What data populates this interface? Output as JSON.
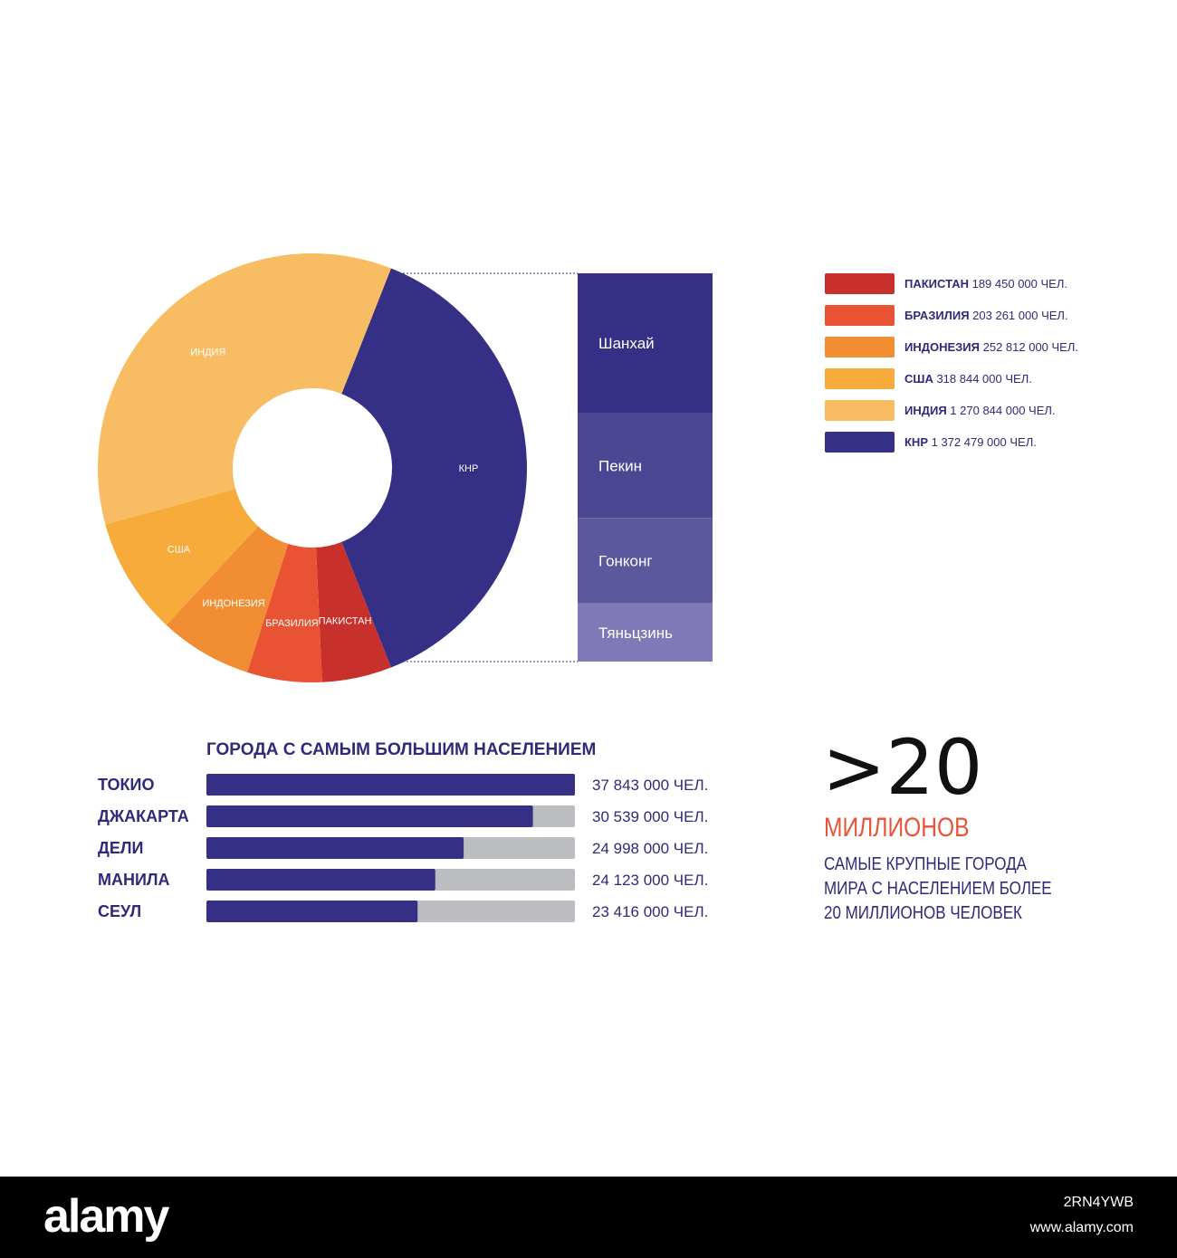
{
  "chart_data": [
    {
      "type": "pie",
      "donut": true,
      "slices": [
        {
          "key": "china",
          "label": "КНР",
          "value": 1372479000,
          "color": "#362f86"
        },
        {
          "key": "pakistan",
          "label": "ПАКИСТАН",
          "value": 189450000,
          "color": "#c8302b"
        },
        {
          "key": "brazil",
          "label": "БРАЗИЛИЯ",
          "value": 203261000,
          "color": "#ea5234"
        },
        {
          "key": "indonesia",
          "label": "ИНДОНЕЗИЯ",
          "value": 252812000,
          "color": "#f18d33"
        },
        {
          "key": "usa",
          "label": "США",
          "value": 318844000,
          "color": "#f6ab3a"
        },
        {
          "key": "india",
          "label": "ИНДИЯ",
          "value": 1270844000,
          "color": "#f8bd62"
        }
      ],
      "legend": {
        "placement": "right",
        "unit": "ЧЕЛ.",
        "entries": [
          {
            "name": "ПАКИСТАН",
            "value_text": "189 450 000 ЧЕЛ.",
            "color": "#c8302b"
          },
          {
            "name": "БРАЗИЛИЯ",
            "value_text": "203 261 000 ЧЕЛ.",
            "color": "#ea5234"
          },
          {
            "name": "ИНДОНЕЗИЯ",
            "value_text": "252 812 000 ЧЕЛ.",
            "color": "#f18d33"
          },
          {
            "name": "США",
            "value_text": "318 844 000 ЧЕЛ.",
            "color": "#f6ab3a"
          },
          {
            "name": "ИНДИЯ",
            "value_text": "1 270 844 000 ЧЕЛ.",
            "color": "#f8bd62"
          },
          {
            "name": "КНР",
            "value_text": "1 372 479 000 ЧЕЛ.",
            "color": "#362f86"
          }
        ]
      },
      "breakdown": {
        "of": "КНР",
        "segments": [
          {
            "label": "Шанхай",
            "share": 0.36,
            "color": "#362f86"
          },
          {
            "label": "Пекин",
            "share": 0.27,
            "color": "#4b4793"
          },
          {
            "label": "Гонконг",
            "share": 0.22,
            "color": "#5c589e"
          },
          {
            "label": "Тяньцзинь",
            "share": 0.15,
            "color": "#8079b7"
          }
        ]
      }
    },
    {
      "type": "bar",
      "orientation": "horizontal",
      "title": "ГОРОДА С САМЫМ БОЛЬШИМ НАСЕЛЕНИЕМ",
      "categories": [
        "ТОКИО",
        "ДЖАКАРТА",
        "ДЕЛИ",
        "МАНИЛА",
        "СЕУЛ"
      ],
      "values": [
        37843000,
        30539000,
        24998000,
        24123000,
        23416000
      ],
      "value_labels": [
        "37 843 000 ЧЕЛ.",
        "30 539 000 ЧЕЛ.",
        "24 998 000 ЧЕЛ.",
        "24 123 000 ЧЕЛ.",
        "23 416 000 ЧЕЛ."
      ],
      "fill_fractions": [
        1.0,
        0.886,
        0.698,
        0.621,
        0.573
      ],
      "bar_color": "#362f86",
      "track_color": "#bcbdc0"
    }
  ],
  "highlight": {
    "number": ">20",
    "word": "МИЛЛИОНОВ",
    "description": [
      "САМЫЕ КРУПНЫЕ ГОРОДА",
      "МИРА С НАСЕЛЕНИЕМ БОЛЕЕ",
      "20 МИЛЛИОНОВ ЧЕЛОВЕК"
    ],
    "word_color": "#e8543a",
    "text_color": "#2f2a7a"
  },
  "watermark": {
    "logo": "alamy",
    "image_id": "2RN4YWB",
    "url": "www.alamy.com"
  }
}
